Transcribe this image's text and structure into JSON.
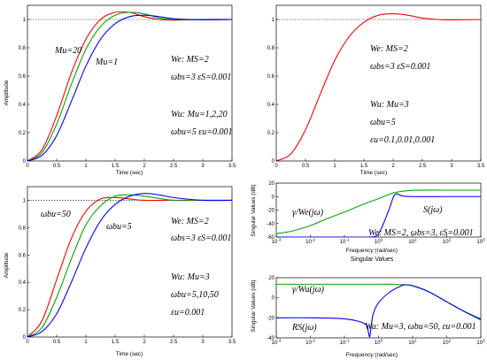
{
  "chart_data": [
    {
      "type": "line",
      "xlabel": "Time (sec)",
      "ylabel": "Amplitude",
      "xlim": [
        0,
        3.5
      ],
      "ylim": [
        0,
        1.1
      ],
      "xticks": [
        "0",
        "0.5",
        "1",
        "1.5",
        "2",
        "2.5",
        "3",
        "3.5"
      ],
      "yticks": [
        "0",
        "0.2",
        "0.4",
        "0.6",
        "0.8",
        "1"
      ],
      "reference_line": 1,
      "colors": [
        "#ff0000",
        "#00aa00",
        "#0000ff"
      ],
      "series": [
        {
          "x": [
            0,
            0.25,
            0.5,
            0.75,
            1.0,
            1.25,
            1.5,
            1.75,
            2.0,
            2.25,
            2.5,
            3.0,
            3.5
          ],
          "y": [
            0,
            0.08,
            0.32,
            0.62,
            0.86,
            1.0,
            1.05,
            1.05,
            1.02,
            1.0,
            0.995,
            1.0,
            1.0
          ]
        },
        {
          "x": [
            0,
            0.25,
            0.5,
            0.75,
            1.0,
            1.25,
            1.5,
            1.75,
            2.0,
            2.25,
            2.5,
            3.0,
            3.5
          ],
          "y": [
            0,
            0.06,
            0.26,
            0.54,
            0.79,
            0.95,
            1.03,
            1.05,
            1.04,
            1.01,
            1.0,
            0.997,
            1.0
          ]
        },
        {
          "x": [
            0,
            0.25,
            0.5,
            0.75,
            1.0,
            1.25,
            1.5,
            1.75,
            2.0,
            2.25,
            2.5,
            3.0,
            3.5
          ],
          "y": [
            0,
            0.04,
            0.18,
            0.42,
            0.67,
            0.86,
            0.97,
            1.02,
            1.03,
            1.02,
            1.005,
            0.998,
            1.0
          ]
        }
      ],
      "annotations": {
        "mu20": "Mu=20",
        "mu1": "Mu=1",
        "we1": "We: MS=2",
        "we2": "ωbs=3 εS=0.001",
        "wu1": "Wu: Mu=1,2,20",
        "wu2": "ωbu=5 εu=0.001"
      }
    },
    {
      "type": "line",
      "xlabel": "Time (sec)",
      "ylabel": "",
      "xlim": [
        0,
        3.5
      ],
      "ylim": [
        0,
        1.1
      ],
      "xticks": [
        "0",
        "0.5",
        "1",
        "1.5",
        "2",
        "2.5",
        "3",
        "3.5"
      ],
      "yticks": [
        "0",
        "0.2",
        "0.4",
        "0.6",
        "0.8",
        "1"
      ],
      "reference_line": 1,
      "colors": [
        "#ff0000",
        "#00aa00",
        "#0000ff"
      ],
      "series": [
        {
          "x": [
            0,
            0.25,
            0.5,
            0.75,
            1.0,
            1.25,
            1.5,
            1.75,
            2.0,
            2.25,
            2.5,
            2.75,
            3.0,
            3.5
          ],
          "y": [
            0,
            0.05,
            0.22,
            0.47,
            0.71,
            0.88,
            0.98,
            1.03,
            1.04,
            1.03,
            1.01,
            1.0,
            0.997,
            1.0
          ]
        }
      ],
      "annotations": {
        "we1": "We: MS=2",
        "we2": "ωbs=3 εS=0.001",
        "wu1": "Wu: Mu=3",
        "wu2": "ωbu=5",
        "wu3": "εu=0.1,0.01,0.001"
      }
    },
    {
      "type": "line",
      "xlabel": "Time (sec)",
      "ylabel": "Amplitude",
      "xlim": [
        0,
        3.5
      ],
      "ylim": [
        0,
        1.1
      ],
      "xticks": [
        "0",
        "0.5",
        "1",
        "1.5",
        "2",
        "2.5",
        "3",
        "3.5"
      ],
      "yticks": [
        "0",
        "0.2",
        "0.4",
        "0.6",
        "0.8",
        "1"
      ],
      "reference_line": 1,
      "colors": [
        "#ff0000",
        "#00aa00",
        "#0000ff"
      ],
      "series": [
        {
          "x": [
            0,
            0.25,
            0.5,
            0.75,
            1.0,
            1.25,
            1.5,
            1.75,
            2.0,
            2.5,
            3.0,
            3.5
          ],
          "y": [
            0,
            0.12,
            0.42,
            0.72,
            0.92,
            1.01,
            1.02,
            1.01,
            1.0,
            1.0,
            1.0,
            1.0
          ]
        },
        {
          "x": [
            0,
            0.25,
            0.5,
            0.75,
            1.0,
            1.25,
            1.5,
            1.75,
            2.0,
            2.5,
            3.0,
            3.5
          ],
          "y": [
            0,
            0.07,
            0.29,
            0.57,
            0.82,
            0.96,
            1.03,
            1.04,
            1.03,
            1.0,
            1.0,
            1.0
          ]
        },
        {
          "x": [
            0,
            0.25,
            0.5,
            0.75,
            1.0,
            1.25,
            1.5,
            1.75,
            2.0,
            2.25,
            2.5,
            3.0,
            3.5
          ],
          "y": [
            0,
            0.04,
            0.17,
            0.4,
            0.65,
            0.85,
            0.97,
            1.03,
            1.05,
            1.04,
            1.02,
            1.0,
            1.0
          ]
        }
      ],
      "annotations": {
        "wbu50": "ωbu=50",
        "wbu5": "ωbu=5",
        "we1": "We: MS=2",
        "we2": "ωbs=3 εS=0.001",
        "wu1": "Wu: Mu=3",
        "wu2": "ωbu=5,10,50",
        "wu3": "εu=0.001"
      }
    },
    {
      "type": "line",
      "xlabel": "Frequency (rad/sec)",
      "ylabel": "Singular Values (dB)",
      "xscale": "log",
      "xlim": [
        0.001,
        1000
      ],
      "ylim": [
        -60,
        20
      ],
      "xticks": [
        "10-3",
        "10-2",
        "10-1",
        "100",
        "101",
        "102",
        "103"
      ],
      "yticks": [
        "20",
        "0",
        "-20",
        "-40",
        "-60"
      ],
      "colors": [
        "#00aa00",
        "#0000ff"
      ],
      "series": [
        {
          "name": "γ/We(jω)",
          "x": [
            0.001,
            0.003,
            0.01,
            0.03,
            0.1,
            0.3,
            1,
            2,
            3,
            10,
            100,
            1000
          ],
          "y": [
            -55,
            -51,
            -43,
            -33,
            -23,
            -13,
            -3,
            3,
            6,
            9.3,
            9.5,
            9.5
          ]
        },
        {
          "name": "S(jω)",
          "x": [
            0.001,
            0.01,
            0.1,
            0.5,
            1,
            2,
            3,
            5,
            10,
            100,
            1000
          ],
          "y": [
            -60,
            -60,
            -60,
            -60,
            -55,
            -20,
            3,
            1,
            0,
            0,
            0
          ]
        }
      ],
      "annotations": {
        "gamma": "γ/We(jω)",
        "s": "S(jω)",
        "we": "We: MS=2, ωbs=3, εS=0.001"
      }
    },
    {
      "type": "line",
      "title": "Singular Values",
      "xlabel": "Frequency (rad/sec)",
      "ylabel": "Singular Values (dB)",
      "xscale": "log",
      "xlim": [
        0.001,
        1000
      ],
      "ylim": [
        -40,
        20
      ],
      "xticks": [
        "10-3",
        "10-2",
        "10-1",
        "100",
        "101",
        "102",
        "103"
      ],
      "yticks": [
        "20",
        "0",
        "-20",
        "-40"
      ],
      "colors": [
        "#00aa00",
        "#0000ff"
      ],
      "series": [
        {
          "name": "γ/Wu(jω)",
          "x": [
            0.001,
            0.01,
            0.1,
            1,
            3,
            6,
            10,
            30,
            100,
            300,
            1000
          ],
          "y": [
            13.5,
            13.5,
            13.5,
            13.5,
            13.5,
            13,
            12,
            6,
            -4,
            -13,
            -21
          ]
        },
        {
          "name": "RS(jω)",
          "x": [
            0.001,
            0.01,
            0.1,
            0.4,
            0.5,
            0.55,
            0.6,
            0.7,
            1,
            2,
            4,
            6,
            10,
            30,
            100,
            300,
            1000
          ],
          "y": [
            -20,
            -20,
            -21,
            -26,
            -34,
            -39,
            -30,
            -16,
            -5,
            5,
            11,
            13,
            12,
            6,
            -4,
            -13,
            -22
          ]
        }
      ],
      "annotations": {
        "gamma": "γ/Wu(jω)",
        "rs": "RS(jω)",
        "wu": "Wu: Mu=3, ωbu=50, εu=0.001"
      }
    }
  ]
}
